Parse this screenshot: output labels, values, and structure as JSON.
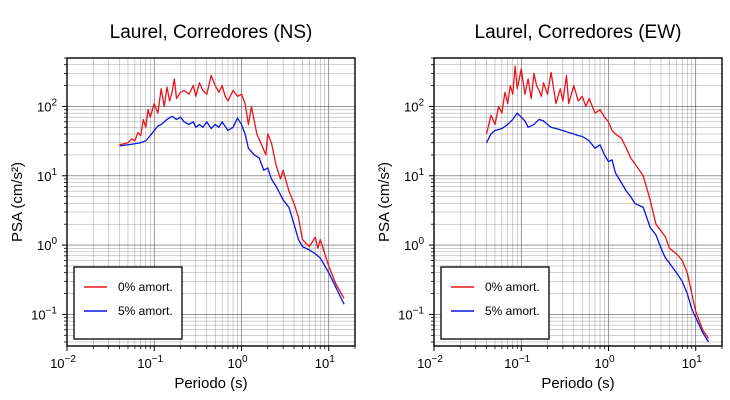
{
  "chart_data": [
    {
      "type": "line",
      "title": "Laurel, Corredores (NS)",
      "xlabel": "Periodo (s)",
      "ylabel": "PSA (cm/s²)",
      "xscale": "log",
      "yscale": "log",
      "xlim": [
        0.01,
        20
      ],
      "ylim": [
        0.035,
        500
      ],
      "grid": true,
      "legend_position": "bottom-left",
      "xticks": [
        {
          "value": 0.01,
          "base": "10",
          "exp": "−2"
        },
        {
          "value": 0.1,
          "base": "10",
          "exp": "−1"
        },
        {
          "value": 1,
          "base": "10",
          "exp": "0"
        },
        {
          "value": 10,
          "base": "10",
          "exp": "1"
        }
      ],
      "yticks": [
        {
          "value": 0.1,
          "base": "10",
          "exp": "−1"
        },
        {
          "value": 1,
          "base": "10",
          "exp": "0"
        },
        {
          "value": 10,
          "base": "10",
          "exp": "1"
        },
        {
          "value": 100,
          "base": "10",
          "exp": "2"
        }
      ],
      "series": [
        {
          "name": "0% amort.",
          "color": "#e8141c",
          "x": [
            0.04,
            0.045,
            0.05,
            0.055,
            0.06,
            0.065,
            0.07,
            0.075,
            0.08,
            0.085,
            0.09,
            0.1,
            0.11,
            0.12,
            0.13,
            0.14,
            0.15,
            0.16,
            0.17,
            0.18,
            0.2,
            0.22,
            0.25,
            0.28,
            0.3,
            0.33,
            0.36,
            0.4,
            0.45,
            0.5,
            0.55,
            0.6,
            0.65,
            0.7,
            0.8,
            0.9,
            1.0,
            1.1,
            1.2,
            1.3,
            1.5,
            1.7,
            1.9,
            2.0,
            2.2,
            2.5,
            2.8,
            3.0,
            3.5,
            4.0,
            4.5,
            5.0,
            6.0,
            7.0,
            7.5,
            8.0,
            9.0,
            10.0,
            12.0,
            15.0
          ],
          "y": [
            28,
            29,
            30,
            34,
            32,
            42,
            38,
            65,
            50,
            90,
            70,
            110,
            80,
            180,
            100,
            190,
            120,
            160,
            250,
            130,
            160,
            170,
            150,
            200,
            140,
            220,
            170,
            150,
            280,
            200,
            160,
            200,
            140,
            120,
            170,
            140,
            150,
            110,
            55,
            100,
            40,
            28,
            20,
            40,
            30,
            14,
            9,
            12,
            6,
            4,
            2.5,
            1.2,
            0.95,
            1.3,
            0.9,
            1.2,
            0.75,
            0.5,
            0.28,
            0.17
          ]
        },
        {
          "name": "5% amort.",
          "color": "#0a14e0",
          "x": [
            0.04,
            0.05,
            0.06,
            0.07,
            0.08,
            0.09,
            0.1,
            0.11,
            0.12,
            0.13,
            0.14,
            0.16,
            0.18,
            0.2,
            0.22,
            0.25,
            0.28,
            0.3,
            0.33,
            0.36,
            0.4,
            0.45,
            0.5,
            0.55,
            0.6,
            0.7,
            0.8,
            0.9,
            1.0,
            1.1,
            1.2,
            1.4,
            1.6,
            1.8,
            2.0,
            2.2,
            2.5,
            3.0,
            3.5,
            4.0,
            4.5,
            5.0,
            6.0,
            7.0,
            8.0,
            10.0,
            12.0,
            15.0
          ],
          "y": [
            27,
            28,
            29,
            30,
            32,
            38,
            45,
            52,
            55,
            60,
            65,
            72,
            65,
            70,
            60,
            55,
            60,
            50,
            55,
            50,
            60,
            48,
            55,
            50,
            60,
            45,
            50,
            68,
            55,
            40,
            25,
            20,
            18,
            12,
            13,
            9,
            7,
            4.5,
            3.5,
            2.0,
            1.2,
            0.95,
            0.85,
            0.75,
            0.65,
            0.4,
            0.25,
            0.14
          ]
        }
      ]
    },
    {
      "type": "line",
      "title": "Laurel, Corredores (EW)",
      "xlabel": "Periodo (s)",
      "ylabel": "PSA (cm/s²)",
      "xscale": "log",
      "yscale": "log",
      "xlim": [
        0.01,
        20
      ],
      "ylim": [
        0.035,
        500
      ],
      "grid": true,
      "legend_position": "bottom-left",
      "xticks": [
        {
          "value": 0.01,
          "base": "10",
          "exp": "−2"
        },
        {
          "value": 0.1,
          "base": "10",
          "exp": "−1"
        },
        {
          "value": 1,
          "base": "10",
          "exp": "0"
        },
        {
          "value": 10,
          "base": "10",
          "exp": "1"
        }
      ],
      "yticks": [
        {
          "value": 0.1,
          "base": "10",
          "exp": "−1"
        },
        {
          "value": 1,
          "base": "10",
          "exp": "0"
        },
        {
          "value": 10,
          "base": "10",
          "exp": "1"
        },
        {
          "value": 100,
          "base": "10",
          "exp": "2"
        }
      ],
      "series": [
        {
          "name": "0% amort.",
          "color": "#e8141c",
          "x": [
            0.04,
            0.045,
            0.05,
            0.055,
            0.06,
            0.065,
            0.07,
            0.075,
            0.08,
            0.085,
            0.09,
            0.095,
            0.1,
            0.11,
            0.12,
            0.13,
            0.14,
            0.15,
            0.16,
            0.17,
            0.18,
            0.2,
            0.22,
            0.25,
            0.28,
            0.3,
            0.33,
            0.35,
            0.4,
            0.45,
            0.5,
            0.55,
            0.6,
            0.7,
            0.8,
            0.9,
            1.0,
            1.1,
            1.2,
            1.4,
            1.6,
            1.8,
            2.0,
            2.5,
            3.0,
            3.5,
            4.0,
            4.5,
            5.0,
            6.0,
            7.0,
            8.0,
            9.0,
            10.0,
            11.0,
            12.0,
            14.0
          ],
          "y": [
            40,
            75,
            55,
            100,
            80,
            160,
            110,
            200,
            150,
            380,
            180,
            250,
            350,
            150,
            250,
            130,
            300,
            200,
            170,
            140,
            220,
            150,
            310,
            110,
            180,
            120,
            280,
            110,
            200,
            120,
            140,
            100,
            130,
            80,
            90,
            70,
            60,
            45,
            40,
            35,
            25,
            18,
            15,
            10,
            4.5,
            2.0,
            1.6,
            1.3,
            0.9,
            0.75,
            0.6,
            0.4,
            0.2,
            0.11,
            0.08,
            0.06,
            0.045
          ]
        },
        {
          "name": "5% amort.",
          "color": "#0a14e0",
          "x": [
            0.04,
            0.045,
            0.05,
            0.06,
            0.07,
            0.08,
            0.09,
            0.1,
            0.11,
            0.12,
            0.14,
            0.16,
            0.18,
            0.2,
            0.22,
            0.25,
            0.3,
            0.35,
            0.4,
            0.45,
            0.5,
            0.6,
            0.7,
            0.8,
            0.9,
            1.0,
            1.1,
            1.2,
            1.4,
            1.6,
            1.8,
            2.0,
            2.5,
            3.0,
            3.5,
            4.0,
            4.5,
            5.0,
            6.0,
            7.0,
            8.0,
            9.0,
            10.0,
            12.0,
            14.0
          ],
          "y": [
            30,
            40,
            45,
            48,
            55,
            65,
            80,
            70,
            62,
            50,
            55,
            65,
            62,
            55,
            50,
            48,
            45,
            42,
            40,
            38,
            37,
            32,
            25,
            28,
            20,
            16,
            17,
            11,
            8,
            6,
            5,
            4,
            3.5,
            1.8,
            1.4,
            0.9,
            0.65,
            0.55,
            0.4,
            0.3,
            0.2,
            0.12,
            0.09,
            0.055,
            0.04
          ]
        }
      ]
    }
  ]
}
